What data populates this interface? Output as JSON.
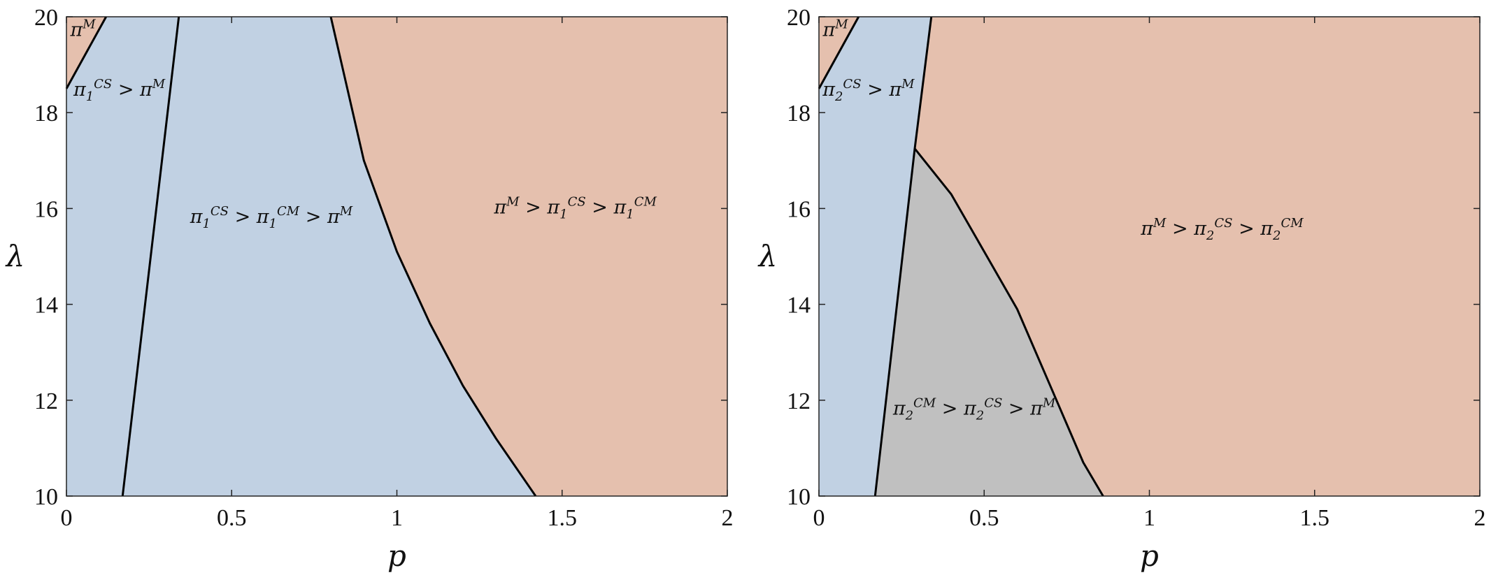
{
  "chart_data": [
    {
      "type": "area",
      "xlabel": "p",
      "ylabel": "λ",
      "xlim": [
        0,
        2
      ],
      "ylim": [
        10,
        20
      ],
      "xticks": [
        0,
        0.5,
        1,
        1.5,
        2
      ],
      "xtick_labels": [
        "0",
        "0.5",
        "1",
        "1.5",
        "2"
      ],
      "yticks": [
        10,
        12,
        14,
        16,
        18,
        20
      ],
      "ytick_labels": [
        "10",
        "12",
        "14",
        "16",
        "18",
        "20"
      ],
      "grid": false,
      "colors": {
        "orange": "#e5c0ae",
        "blue": "#c1d1e3",
        "gray": "#c0c0c0",
        "line": "#000000"
      },
      "regions": [
        {
          "name": "pi_M_topleft",
          "color": "orange",
          "polygon": [
            [
              0,
              18.5
            ],
            [
              0.12,
              20
            ],
            [
              0,
              20
            ]
          ],
          "label": {
            "at": [
              0.05,
              19.6
            ],
            "parts": [
              [
                "π",
                ""
              ],
              [
                "M",
                "sup"
              ]
            ]
          }
        },
        {
          "name": "pi1CS_gt_piM",
          "color": "blue",
          "polygon": [
            [
              0,
              10
            ],
            [
              0.17,
              10
            ],
            [
              0.34,
              20
            ],
            [
              0.12,
              20
            ],
            [
              0,
              18.5
            ]
          ],
          "label": {
            "at": [
              0.16,
              18.35
            ],
            "parts": [
              [
                "π",
                ""
              ],
              [
                "1",
                "sub"
              ],
              [
                "CS",
                "sup"
              ],
              [
                " > π",
                ""
              ],
              [
                "M",
                "sup"
              ]
            ]
          }
        },
        {
          "name": "pi1CS_gt_pi1CM_gt_piM",
          "color": "blue",
          "polygon": [
            [
              0.17,
              10
            ],
            [
              1.42,
              10
            ],
            [
              1.3,
              11.2
            ],
            [
              1.2,
              12.3
            ],
            [
              1.1,
              13.6
            ],
            [
              1.0,
              15.1
            ],
            [
              0.9,
              17.0
            ],
            [
              0.8,
              20
            ],
            [
              0.34,
              20
            ]
          ],
          "label": {
            "at": [
              0.62,
              15.7
            ],
            "parts": [
              [
                "π",
                ""
              ],
              [
                "1",
                "sub"
              ],
              [
                "CS",
                "sup"
              ],
              [
                " > π",
                ""
              ],
              [
                "1",
                "sub"
              ],
              [
                "CM",
                "sup"
              ],
              [
                " > π",
                ""
              ],
              [
                "M",
                "sup"
              ]
            ]
          }
        },
        {
          "name": "piM_gt_pi1CS_gt_pi1CM",
          "color": "orange",
          "polygon": [
            [
              1.42,
              10
            ],
            [
              2,
              10
            ],
            [
              2,
              20
            ],
            [
              0.8,
              20
            ],
            [
              0.9,
              17.0
            ],
            [
              1.0,
              15.1
            ],
            [
              1.1,
              13.6
            ],
            [
              1.2,
              12.3
            ],
            [
              1.3,
              11.2
            ]
          ],
          "label": {
            "at": [
              1.54,
              15.9
            ],
            "parts": [
              [
                "π",
                ""
              ],
              [
                "M",
                "sup"
              ],
              [
                " > π",
                ""
              ],
              [
                "1",
                "sub"
              ],
              [
                "CS",
                "sup"
              ],
              [
                " > π",
                ""
              ],
              [
                "1",
                "sub"
              ],
              [
                "CM",
                "sup"
              ]
            ]
          }
        }
      ],
      "curves": [
        [
          [
            0,
            18.5
          ],
          [
            0.12,
            20
          ]
        ],
        [
          [
            0.17,
            10
          ],
          [
            0.34,
            20
          ]
        ],
        [
          [
            0.8,
            20
          ],
          [
            0.9,
            17.0
          ],
          [
            1.0,
            15.1
          ],
          [
            1.1,
            13.6
          ],
          [
            1.2,
            12.3
          ],
          [
            1.3,
            11.2
          ],
          [
            1.42,
            10
          ]
        ]
      ]
    },
    {
      "type": "area",
      "xlabel": "p",
      "ylabel": "λ",
      "xlim": [
        0,
        2
      ],
      "ylim": [
        10,
        20
      ],
      "xticks": [
        0,
        0.5,
        1,
        1.5,
        2
      ],
      "xtick_labels": [
        "0",
        "0.5",
        "1",
        "1.5",
        "2"
      ],
      "yticks": [
        10,
        12,
        14,
        16,
        18,
        20
      ],
      "ytick_labels": [
        "10",
        "12",
        "14",
        "16",
        "18",
        "20"
      ],
      "grid": false,
      "colors": {
        "orange": "#e5c0ae",
        "blue": "#c1d1e3",
        "gray": "#c0c0c0",
        "line": "#000000"
      },
      "regions": [
        {
          "name": "pi_M_topleft",
          "color": "orange",
          "polygon": [
            [
              0,
              18.5
            ],
            [
              0.12,
              20
            ],
            [
              0,
              20
            ]
          ],
          "label": {
            "at": [
              0.05,
              19.6
            ],
            "parts": [
              [
                "π",
                ""
              ],
              [
                "M",
                "sup"
              ]
            ]
          }
        },
        {
          "name": "pi2CS_gt_piM",
          "color": "blue",
          "polygon": [
            [
              0,
              10
            ],
            [
              0.17,
              10
            ],
            [
              0.29,
              17.25
            ],
            [
              0.34,
              20
            ],
            [
              0.12,
              20
            ],
            [
              0,
              18.5
            ]
          ],
          "label": {
            "at": [
              0.15,
              18.35
            ],
            "parts": [
              [
                "π",
                ""
              ],
              [
                "2",
                "sub"
              ],
              [
                "CS",
                "sup"
              ],
              [
                " > π",
                ""
              ],
              [
                "M",
                "sup"
              ]
            ]
          }
        },
        {
          "name": "pi2CM_gt_pi2CS_gt_piM",
          "color": "gray",
          "polygon": [
            [
              0.17,
              10
            ],
            [
              0.86,
              10
            ],
            [
              0.8,
              10.7
            ],
            [
              0.7,
              12.3
            ],
            [
              0.6,
              13.9
            ],
            [
              0.5,
              15.1
            ],
            [
              0.4,
              16.3
            ],
            [
              0.29,
              17.25
            ]
          ],
          "label": {
            "at": [
              0.47,
              11.7
            ],
            "parts": [
              [
                "π",
                ""
              ],
              [
                "2",
                "sub"
              ],
              [
                "CM",
                "sup"
              ],
              [
                " > π",
                ""
              ],
              [
                "2",
                "sub"
              ],
              [
                "CS",
                "sup"
              ],
              [
                " > π",
                ""
              ],
              [
                "M",
                "sup"
              ]
            ]
          }
        },
        {
          "name": "piM_gt_pi2CS_gt_pi2CM",
          "color": "orange",
          "polygon": [
            [
              0.86,
              10
            ],
            [
              2,
              10
            ],
            [
              2,
              20
            ],
            [
              0.34,
              20
            ],
            [
              0.29,
              17.25
            ],
            [
              0.4,
              16.3
            ],
            [
              0.5,
              15.1
            ],
            [
              0.6,
              13.9
            ],
            [
              0.7,
              12.3
            ],
            [
              0.8,
              10.7
            ]
          ],
          "label": {
            "at": [
              1.22,
              15.45
            ],
            "parts": [
              [
                "π",
                ""
              ],
              [
                "M",
                "sup"
              ],
              [
                " > π",
                ""
              ],
              [
                "2",
                "sub"
              ],
              [
                "CS",
                "sup"
              ],
              [
                " > π",
                ""
              ],
              [
                "2",
                "sub"
              ],
              [
                "CM",
                "sup"
              ]
            ]
          }
        }
      ],
      "curves": [
        [
          [
            0,
            18.5
          ],
          [
            0.12,
            20
          ]
        ],
        [
          [
            0.17,
            10
          ],
          [
            0.29,
            17.25
          ],
          [
            0.34,
            20
          ]
        ],
        [
          [
            0.29,
            17.25
          ],
          [
            0.4,
            16.3
          ],
          [
            0.5,
            15.1
          ],
          [
            0.6,
            13.9
          ],
          [
            0.7,
            12.3
          ],
          [
            0.8,
            10.7
          ],
          [
            0.86,
            10
          ]
        ]
      ]
    }
  ]
}
